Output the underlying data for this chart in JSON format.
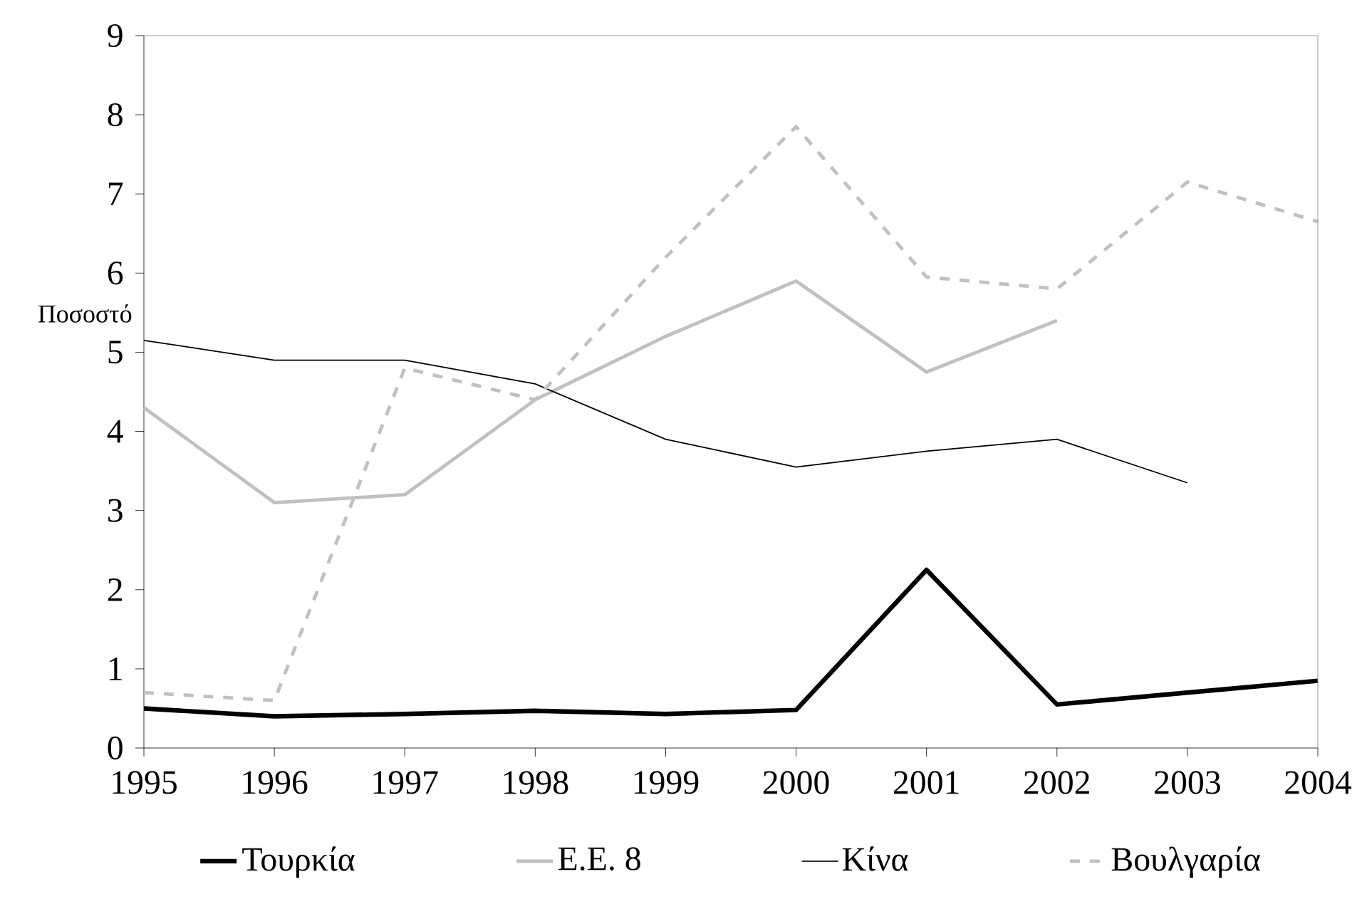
{
  "chart_data": {
    "type": "line",
    "ylabel": "Ποσοστό",
    "categories": [
      "1995",
      "1996",
      "1997",
      "1998",
      "1999",
      "2000",
      "2001",
      "2002",
      "2003",
      "2004"
    ],
    "series": [
      {
        "name": "Τουρκία",
        "color": "#000000",
        "line_style": "solid",
        "values": [
          0.5,
          0.4,
          0.43,
          0.47,
          0.43,
          0.48,
          2.25,
          0.55,
          0.7,
          0.85
        ]
      },
      {
        "name": "Ε.Ε. 8",
        "color": "#c0c0c0",
        "line_style": "solid",
        "values": [
          4.3,
          3.1,
          3.2,
          4.4,
          5.2,
          5.9,
          4.75,
          5.4,
          null,
          null
        ]
      },
      {
        "name": "Κίνα",
        "color": "#000000",
        "line_style": "solid",
        "values": [
          5.15,
          4.9,
          4.9,
          4.6,
          3.9,
          3.55,
          3.75,
          3.9,
          3.35,
          null
        ]
      },
      {
        "name": "Βουλγαρία",
        "color": "#c0c0c0",
        "line_style": "dashed",
        "values": [
          0.7,
          0.6,
          4.8,
          4.4,
          6.2,
          7.85,
          5.95,
          5.8,
          7.15,
          6.65
        ]
      }
    ],
    "ylim": [
      0,
      9
    ],
    "yticks": [
      0,
      1,
      2,
      3,
      4,
      5,
      6,
      7,
      8,
      9
    ],
    "grid": false,
    "legend": "bottom",
    "marker": "none"
  }
}
